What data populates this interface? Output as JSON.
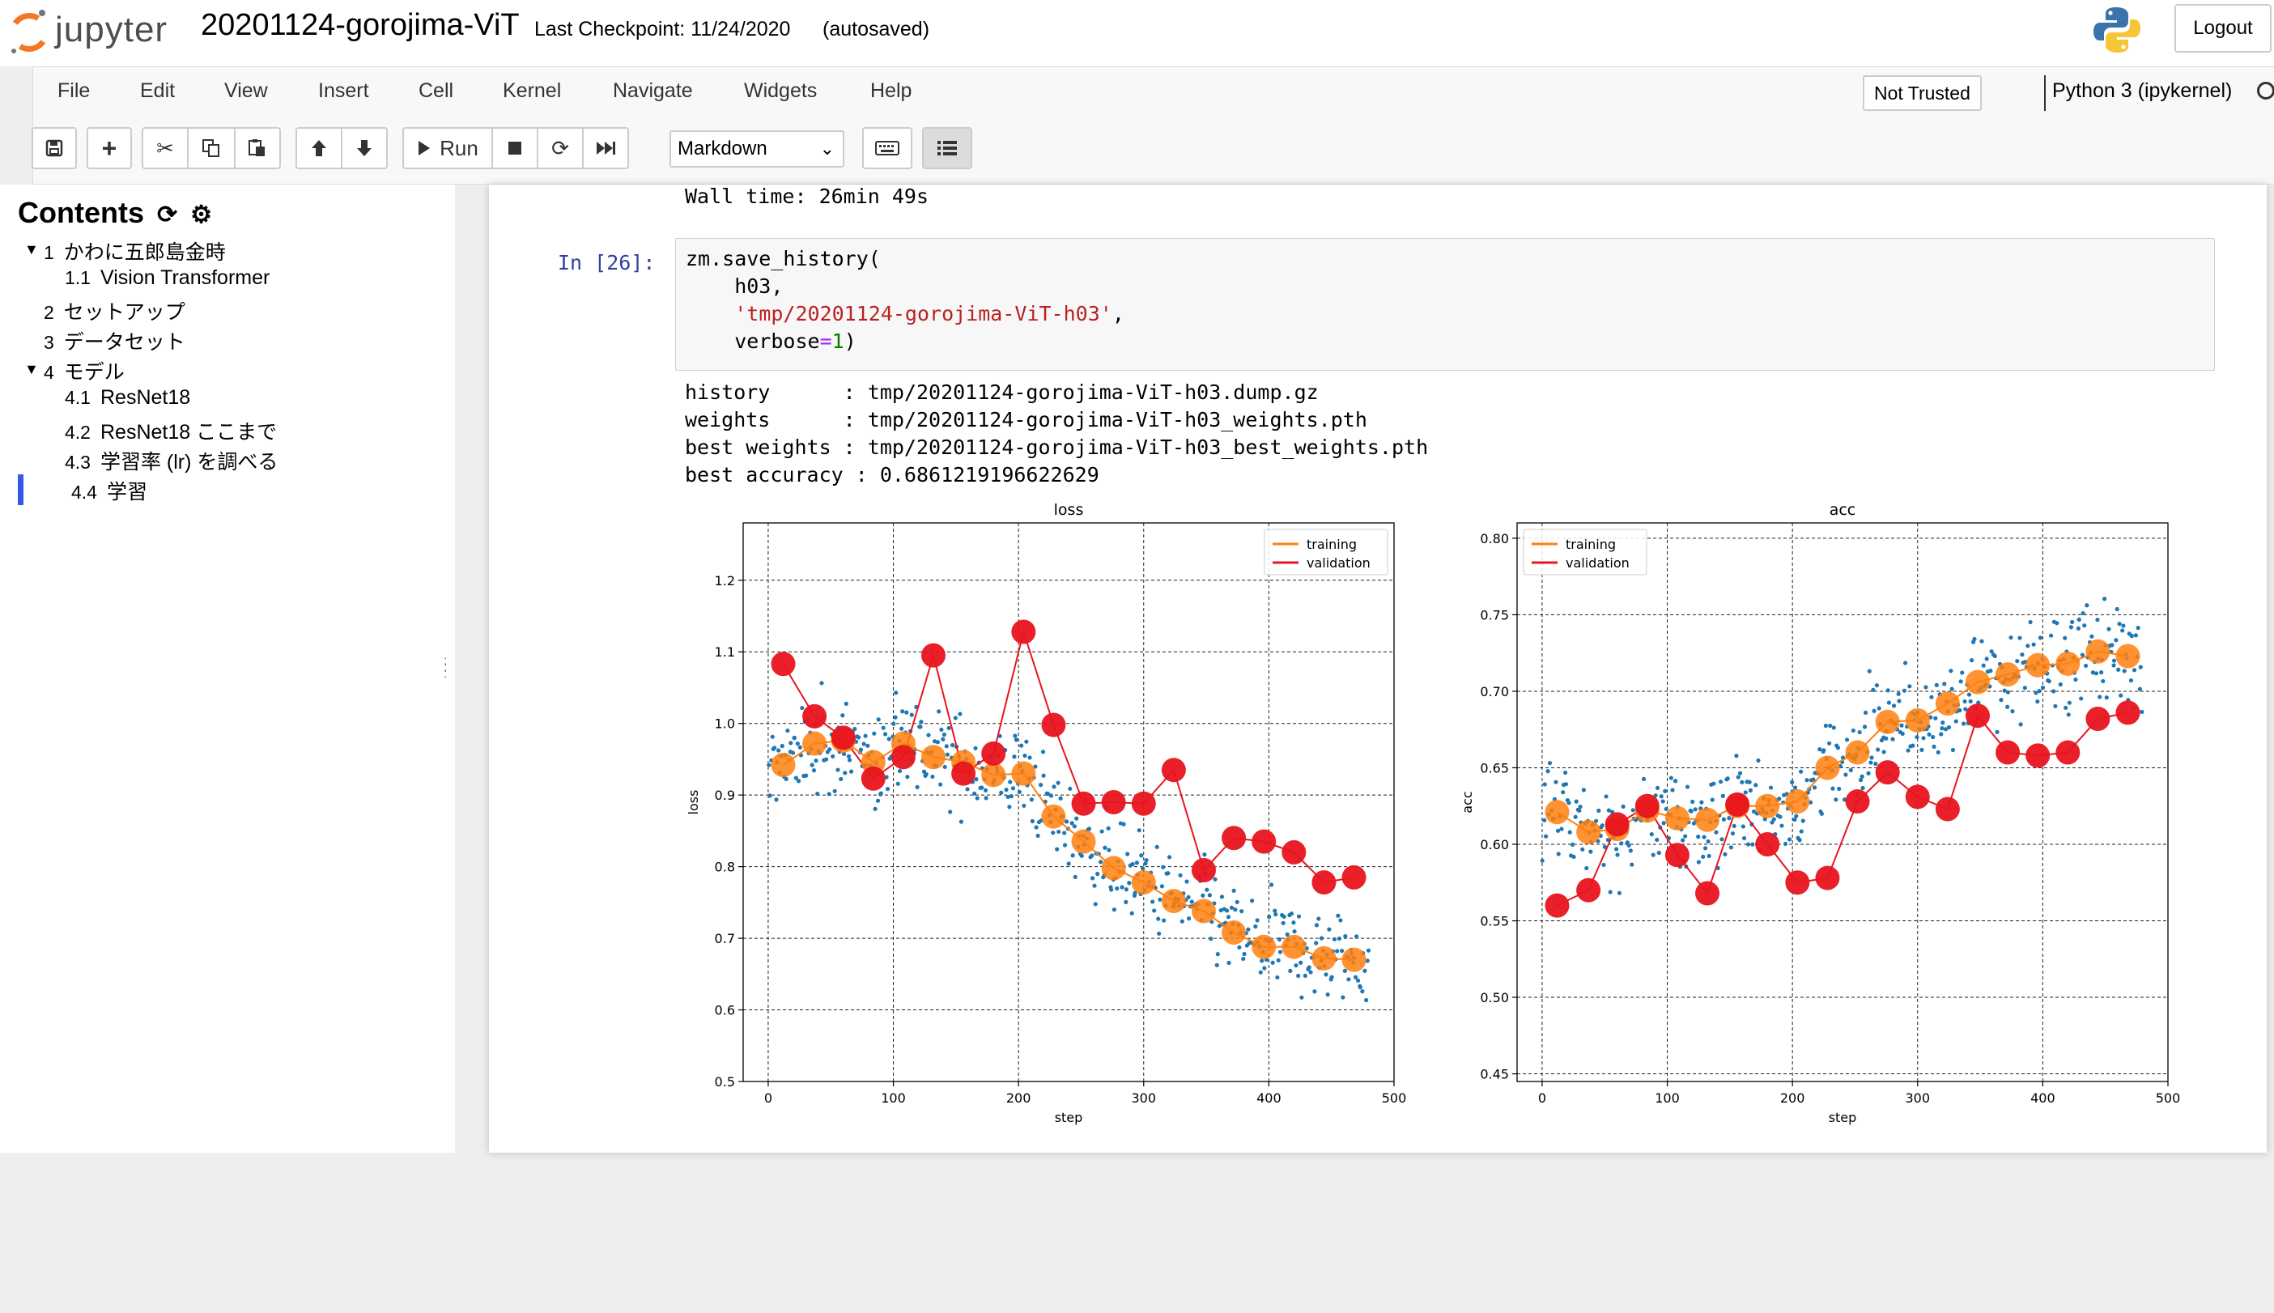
{
  "header": {
    "logo_text": "jupyter",
    "notebook_title": "20201124-gorojima-ViT",
    "checkpoint": "Last Checkpoint: 11/24/2020",
    "autosave": "(autosaved)",
    "logout_label": "Logout"
  },
  "menu": {
    "items": [
      "File",
      "Edit",
      "View",
      "Insert",
      "Cell",
      "Kernel",
      "Navigate",
      "Widgets",
      "Help"
    ],
    "trust_label": "Not Trusted",
    "kernel_name": "Python 3 (ipykernel)"
  },
  "toolbar": {
    "run_label": "Run",
    "cell_type": "Markdown"
  },
  "toc": {
    "title": "Contents",
    "items": [
      {
        "num": "1",
        "label": "かわに五郎島金時"
      },
      {
        "num": "1.1",
        "label": "Vision Transformer"
      },
      {
        "num": "2",
        "label": "セットアップ"
      },
      {
        "num": "3",
        "label": "データセット"
      },
      {
        "num": "4",
        "label": "モデル"
      },
      {
        "num": "4.1",
        "label": "ResNet18"
      },
      {
        "num": "4.2",
        "label": "ResNet18 ここまで"
      },
      {
        "num": "4.3",
        "label": "学習率 (lr) を調べる"
      },
      {
        "num": "4.4",
        "label": "学習"
      }
    ]
  },
  "cells": {
    "prev_output": "Wall time: 26min 49s",
    "prompt": "In [26]:",
    "code": {
      "line1": "zm.save_history(",
      "line2": "    h03,",
      "line3_indent": "    ",
      "line3_str": "'tmp/20201124-gorojima-ViT-h03'",
      "line3_end": ",",
      "line4_a": "    verbose",
      "line4_op": "=",
      "line4_num": "1",
      "line4_end": ")"
    },
    "output_lines": [
      "history      : tmp/20201124-gorojima-ViT-h03.dump.gz",
      "weights      : tmp/20201124-gorojima-ViT-h03_weights.pth",
      "best weights : tmp/20201124-gorojima-ViT-h03_best_weights.pth",
      "best accuracy : 0.6861219196622629"
    ]
  },
  "colors": {
    "training": "#ff7f0e",
    "validation": "#e8141e",
    "scatter": "#1f77b4"
  },
  "chart_data": [
    {
      "type": "line",
      "title": "loss",
      "xlabel": "step",
      "ylabel": "loss",
      "xlim": [
        -20,
        500
      ],
      "ylim": [
        0.5,
        1.28
      ],
      "xticks": [
        0,
        100,
        200,
        300,
        400,
        500
      ],
      "yticks": [
        0.5,
        0.6,
        0.7,
        0.8,
        0.9,
        1.0,
        1.1,
        1.2
      ],
      "grid": true,
      "legend": "top-right",
      "x": [
        12,
        37,
        60,
        84,
        108,
        132,
        156,
        180,
        204,
        228,
        252,
        276,
        300,
        324,
        348,
        372,
        396,
        420,
        444,
        468
      ],
      "series": [
        {
          "name": "training",
          "values": [
            0.942,
            0.972,
            0.976,
            0.946,
            0.972,
            0.953,
            0.946,
            0.928,
            0.93,
            0.87,
            0.835,
            0.798,
            0.778,
            0.752,
            0.738,
            0.708,
            0.688,
            0.688,
            0.672,
            0.67
          ]
        },
        {
          "name": "validation",
          "values": [
            1.083,
            1.01,
            0.98,
            0.923,
            0.953,
            1.095,
            0.93,
            0.958,
            1.128,
            0.998,
            0.888,
            0.89,
            0.888,
            0.935,
            0.795,
            0.84,
            0.835,
            0.82,
            0.778,
            0.785
          ]
        }
      ]
    },
    {
      "type": "line",
      "title": "acc",
      "xlabel": "step",
      "ylabel": "acc",
      "xlim": [
        -20,
        500
      ],
      "ylim": [
        0.445,
        0.81
      ],
      "xticks": [
        0,
        100,
        200,
        300,
        400,
        500
      ],
      "yticks": [
        0.45,
        0.5,
        0.55,
        0.6,
        0.65,
        0.7,
        0.75,
        0.8
      ],
      "grid": true,
      "legend": "top-left",
      "x": [
        12,
        37,
        60,
        84,
        108,
        132,
        156,
        180,
        204,
        228,
        252,
        276,
        300,
        324,
        348,
        372,
        396,
        420,
        444,
        468
      ],
      "series": [
        {
          "name": "training",
          "values": [
            0.621,
            0.608,
            0.61,
            0.622,
            0.617,
            0.616,
            0.625,
            0.625,
            0.628,
            0.65,
            0.66,
            0.68,
            0.681,
            0.692,
            0.706,
            0.711,
            0.717,
            0.718,
            0.726,
            0.723
          ]
        },
        {
          "name": "validation",
          "values": [
            0.56,
            0.57,
            0.613,
            0.625,
            0.593,
            0.568,
            0.626,
            0.6,
            0.575,
            0.578,
            0.628,
            0.647,
            0.631,
            0.623,
            0.684,
            0.66,
            0.658,
            0.66,
            0.682,
            0.686
          ]
        }
      ]
    }
  ]
}
